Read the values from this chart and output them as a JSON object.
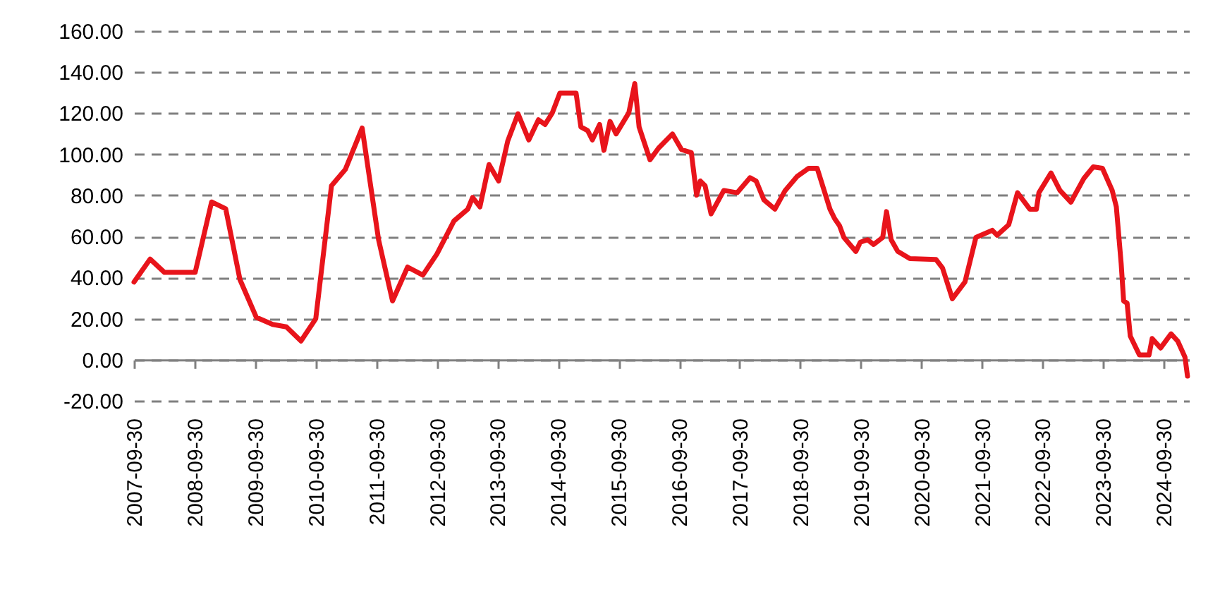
{
  "chart_data": {
    "type": "line",
    "x": [
      "2007-09-30",
      "2008-01-05",
      "2008-04-01",
      "2008-10-03",
      "2009-01-10",
      "2009-04-05",
      "2009-06-30",
      "2009-10-07",
      "2010-01-13",
      "2010-04-06",
      "2010-07-03",
      "2010-09-30",
      "2011-01-03",
      "2011-03-28",
      "2011-07-07",
      "2011-10-14",
      "2012-01-06",
      "2012-04-06",
      "2012-07-07",
      "2012-09-30",
      "2013-01-10",
      "2013-04-04",
      "2013-05-03",
      "2013-06-16",
      "2013-08-10",
      "2013-10-07",
      "2013-12-01",
      "2014-02-01",
      "2014-04-07",
      "2014-06-04",
      "2014-07-14",
      "2014-08-27",
      "2014-10-11",
      "2015-01-17",
      "2015-02-15",
      "2015-03-28",
      "2015-04-25",
      "2015-06-08",
      "2015-07-04",
      "2015-08-10",
      "2015-09-15",
      "2015-12-01",
      "2016-01-06",
      "2016-02-01",
      "2016-04-07",
      "2016-05-28",
      "2016-08-20",
      "2016-10-14",
      "2016-12-12",
      "2017-01-13",
      "2017-02-04",
      "2017-03-05",
      "2017-04-10",
      "2017-06-26",
      "2017-09-15",
      "2017-12-01",
      "2018-01-07",
      "2018-02-23",
      "2018-04-30",
      "2018-07-01",
      "2018-09-12",
      "2018-11-20",
      "2019-01-10",
      "2019-03-28",
      "2019-04-25",
      "2019-05-25",
      "2019-06-20",
      "2019-08-31",
      "2019-09-27",
      "2019-11-10",
      "2019-12-16",
      "2020-02-09",
      "2020-03-03",
      "2020-03-31",
      "2020-05-10",
      "2020-07-22",
      "2020-12-26",
      "2021-02-04",
      "2021-04-04",
      "2021-06-19",
      "2021-08-24",
      "2021-12-01",
      "2021-12-30",
      "2022-03-10",
      "2022-05-02",
      "2022-07-15",
      "2022-08-24",
      "2022-09-08",
      "2022-11-20",
      "2023-01-13",
      "2023-03-20",
      "2023-06-05",
      "2023-08-02",
      "2023-09-26",
      "2023-11-24",
      "2023-12-19",
      "2024-01-17",
      "2024-02-01",
      "2024-02-22",
      "2024-03-12",
      "2024-05-06",
      "2024-07-03",
      "2024-07-22",
      "2024-09-11",
      "2024-11-13",
      "2024-12-23",
      "2025-02-05",
      "2025-02-20"
    ],
    "series": [
      {
        "color": "#e8141b",
        "values": [
          37.8,
          49,
          42.5,
          42.5,
          76.8,
          73.5,
          39,
          20.6,
          17.2,
          16,
          9.1,
          19.9,
          84.7,
          92.7,
          112.8,
          58.4,
          28.6,
          45.1,
          41.2,
          51.5,
          67.5,
          73.3,
          79,
          74.4,
          95,
          87,
          106.5,
          119.7,
          107,
          116.8,
          114.5,
          120.2,
          129.8,
          129.8,
          113.3,
          111.5,
          107,
          114.5,
          101.9,
          116,
          109.9,
          120.2,
          134.4,
          113.3,
          97.3,
          103,
          109.9,
          102.3,
          100.8,
          80.1,
          87,
          84.7,
          71,
          82.4,
          81.3,
          88.6,
          87,
          77.8,
          73.3,
          82.4,
          89.3,
          93.2,
          93.2,
          73.3,
          68.7,
          65.2,
          59.5,
          52.7,
          57.2,
          58.4,
          56.1,
          59.5,
          72.1,
          58.4,
          52.7,
          49.2,
          48.8,
          44.6,
          29.7,
          37.8,
          59.5,
          63,
          60.6,
          65.7,
          81.3,
          73.3,
          73.3,
          81.3,
          90.9,
          82.4,
          76.7,
          88.1,
          93.9,
          93.2,
          82.4,
          74.4,
          46.9,
          28.6,
          27.5,
          11.5,
          2.3,
          2.3,
          10.3,
          5.7,
          12.6,
          9.1,
          1.2,
          -8
        ]
      }
    ],
    "xlim": [
      "2007-09-30",
      "2025-03-01"
    ],
    "xticks": [
      "2007-09-30",
      "2008-09-30",
      "2009-09-30",
      "2010-09-30",
      "2011-09-30",
      "2012-09-30",
      "2013-09-30",
      "2014-09-30",
      "2015-09-30",
      "2016-09-30",
      "2017-09-30",
      "2018-09-30",
      "2019-09-30",
      "2020-09-30",
      "2021-09-30",
      "2022-09-30",
      "2023-09-30",
      "2024-09-30"
    ],
    "ylim": [
      -20,
      160
    ],
    "yticks": [
      {
        "value": -20,
        "label": "-20.00"
      },
      {
        "value": 0,
        "label": "0.00"
      },
      {
        "value": 20,
        "label": "20.00"
      },
      {
        "value": 40,
        "label": "40.00"
      },
      {
        "value": 60,
        "label": "60.00"
      },
      {
        "value": 80,
        "label": "80.00"
      },
      {
        "value": 100,
        "label": "100.00"
      },
      {
        "value": 120,
        "label": "120.00"
      },
      {
        "value": 140,
        "label": "140.00"
      },
      {
        "value": 160,
        "label": "160.00"
      }
    ],
    "grid": "y",
    "line_style": "solid"
  }
}
